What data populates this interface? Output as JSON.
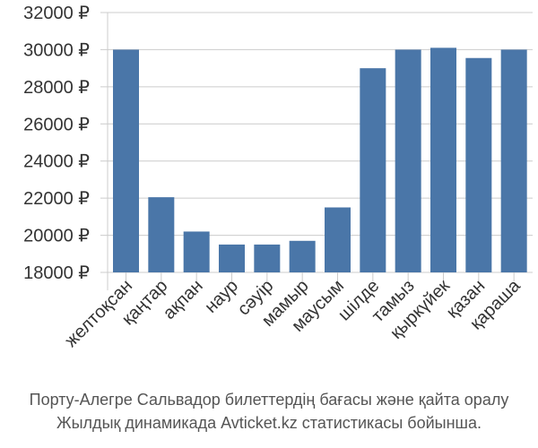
{
  "chart_data": {
    "type": "bar",
    "categories": [
      "желтоқсан",
      "қаңтар",
      "ақпан",
      "наур",
      "сәуір",
      "мамыр",
      "маусым",
      "шілде",
      "тамыз",
      "қыркүйек",
      "қазан",
      "қараша"
    ],
    "values": [
      30000,
      22050,
      20200,
      19500,
      19500,
      19700,
      21500,
      29000,
      30000,
      30100,
      29550,
      30000
    ],
    "yticks": [
      "18000 ₽",
      "20000 ₽",
      "22000 ₽",
      "24000 ₽",
      "26000 ₽",
      "28000 ₽",
      "30000 ₽",
      "32000 ₽"
    ],
    "ylim": [
      18000,
      32000
    ],
    "bar_color": "#4a76a8",
    "grid_color": "#cccccc"
  },
  "caption": {
    "line1": "Порту-Алегре Сальвадор билеттердің бағасы және қайта оралу",
    "line2": "Жылдық динамикада Avticket.kz статистикасы бойынша."
  }
}
